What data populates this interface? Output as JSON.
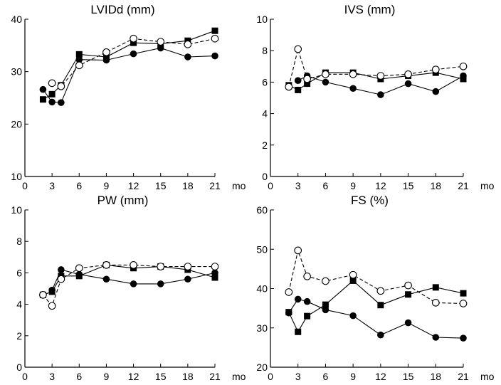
{
  "x_unit": "mo",
  "x_ticks": [
    0,
    3,
    6,
    9,
    12,
    15,
    18,
    21
  ],
  "x_range": [
    0,
    21
  ],
  "chart_data": [
    {
      "type": "line",
      "title": "LVIDd (mm)",
      "ylim": [
        10,
        40
      ],
      "yticks": [
        10,
        20,
        30,
        40
      ],
      "series": [
        {
          "marker": "filled-square",
          "line": "solid",
          "x": [
            2,
            3,
            4,
            6,
            9,
            12,
            15,
            18,
            21
          ],
          "values": [
            24.7,
            25.7,
            27.4,
            33.3,
            32.8,
            35.5,
            35.3,
            35.9,
            37.8
          ]
        },
        {
          "marker": "filled-circle",
          "line": "solid",
          "x": [
            2,
            3,
            4,
            6,
            9,
            12,
            15,
            18,
            21
          ],
          "values": [
            26.6,
            24.2,
            24.1,
            32.3,
            32.2,
            33.4,
            34.5,
            32.8,
            33.0
          ]
        },
        {
          "marker": "open-circle",
          "line": "dashed",
          "x": [
            3,
            4,
            6,
            9,
            12,
            15,
            18,
            21
          ],
          "values": [
            27.8,
            27.2,
            31.2,
            33.7,
            36.3,
            35.7,
            35.2,
            36.3
          ]
        }
      ]
    },
    {
      "type": "line",
      "title": "IVS (mm)",
      "ylim": [
        0,
        10
      ],
      "yticks": [
        0,
        2,
        4,
        6,
        8,
        10
      ],
      "series": [
        {
          "marker": "filled-square",
          "line": "solid",
          "x": [
            2,
            3,
            4,
            6,
            9,
            12,
            15,
            18,
            21
          ],
          "values": [
            5.8,
            5.5,
            5.9,
            6.6,
            6.6,
            6.2,
            6.4,
            6.6,
            6.2
          ]
        },
        {
          "marker": "filled-circle",
          "line": "solid",
          "x": [
            3,
            4,
            6,
            9,
            12,
            15,
            18,
            21
          ],
          "values": [
            6.1,
            6.4,
            6.0,
            5.6,
            5.2,
            5.9,
            5.4,
            6.4
          ]
        },
        {
          "marker": "open-circle",
          "line": "dashed",
          "x": [
            2,
            3,
            4,
            6,
            9,
            12,
            15,
            18,
            21
          ],
          "values": [
            5.7,
            8.1,
            6.2,
            6.5,
            6.5,
            6.4,
            6.5,
            6.8,
            7.0
          ]
        }
      ]
    },
    {
      "type": "line",
      "title": "PW (mm)",
      "ylim": [
        0,
        10
      ],
      "yticks": [
        0,
        2,
        4,
        6,
        8,
        10
      ],
      "series": [
        {
          "marker": "filled-square",
          "line": "solid",
          "x": [
            2,
            3,
            4,
            6,
            9,
            12,
            15,
            18,
            21
          ],
          "values": [
            4.6,
            4.8,
            5.8,
            5.8,
            6.5,
            6.3,
            6.4,
            6.2,
            5.7
          ]
        },
        {
          "marker": "filled-circle",
          "line": "solid",
          "x": [
            3,
            4,
            6,
            9,
            12,
            15,
            18,
            21
          ],
          "values": [
            4.9,
            6.2,
            5.9,
            5.6,
            5.3,
            5.3,
            5.6,
            6.0
          ]
        },
        {
          "marker": "open-circle",
          "line": "dashed",
          "x": [
            2,
            3,
            4,
            6,
            9,
            12,
            15,
            18,
            21
          ],
          "values": [
            4.6,
            3.9,
            5.6,
            6.3,
            6.5,
            6.5,
            6.4,
            6.4,
            6.4
          ]
        }
      ]
    },
    {
      "type": "line",
      "title": "FS (%)",
      "ylim": [
        20,
        60
      ],
      "yticks": [
        20,
        30,
        40,
        50,
        60
      ],
      "series": [
        {
          "marker": "filled-square",
          "line": "solid",
          "x": [
            2,
            3,
            4,
            6,
            9,
            12,
            15,
            18,
            21
          ],
          "values": [
            34.0,
            29.0,
            33.0,
            35.9,
            42.0,
            35.8,
            38.5,
            40.3,
            38.8
          ]
        },
        {
          "marker": "filled-circle",
          "line": "solid",
          "x": [
            2,
            3,
            4,
            6,
            9,
            12,
            15,
            18,
            21
          ],
          "values": [
            33.8,
            37.3,
            36.7,
            34.6,
            33.1,
            28.2,
            31.3,
            27.6,
            27.4
          ]
        },
        {
          "marker": "open-circle",
          "line": "dashed",
          "x": [
            2,
            3,
            4,
            6,
            9,
            12,
            15,
            18,
            21
          ],
          "values": [
            39.1,
            49.7,
            43.1,
            41.9,
            43.5,
            39.4,
            40.8,
            36.4,
            36.2
          ]
        }
      ]
    }
  ]
}
